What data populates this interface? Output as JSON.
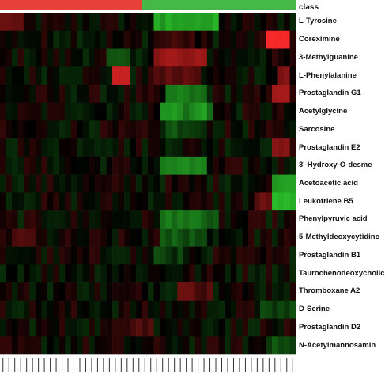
{
  "chart_data": {
    "type": "heatmap",
    "class_label": "class",
    "groups": [
      {
        "name": "",
        "color": "#e8413a",
        "count": 24
      },
      {
        "name": "",
        "color": "#46b84a",
        "count": 26
      }
    ],
    "rows": [
      "L-Tyrosine",
      "Coreximine",
      "3-Methylguanine",
      "L-Phenylalanine",
      "Prostaglandin G1",
      "Acetylglycine",
      "Sarcosine",
      "Prostaglandin E2",
      "3'-Hydroxy-O-desme",
      "Acetoacetic acid",
      "Leukotriene B5",
      "Phenylpyruvic acid",
      "5-Methyldeoxycytidine",
      "Prostaglandin B1",
      "Taurochenodeoxycholic",
      "Thromboxane A2",
      "D-Serine",
      "Prostaglandin D2",
      "N-Acetylmannosamin"
    ],
    "n_columns": 50,
    "color_scale": {
      "low": "#2fd42f",
      "mid": "#000000",
      "high": "#ff2a2a"
    },
    "value_range": [
      -1,
      1
    ],
    "column_tick_labels": "illegible"
  }
}
